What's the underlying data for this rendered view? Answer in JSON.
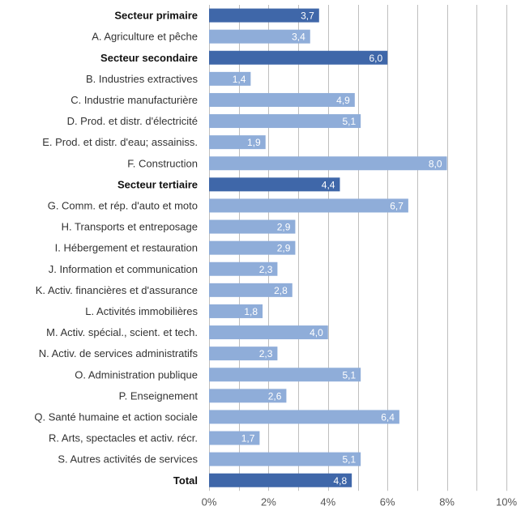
{
  "chart_data": {
    "type": "bar",
    "orientation": "horizontal",
    "title": "",
    "xlabel": "",
    "ylabel": "",
    "xlim": [
      0,
      10
    ],
    "x_ticks": [
      "0%",
      "2%",
      "4%",
      "6%",
      "8%",
      "10%"
    ],
    "grid": "vertical",
    "legend": "none",
    "colors": {
      "sector": "#3f67a9",
      "branch": "#8fadd9"
    },
    "categories": [
      {
        "label": "Secteur primaire",
        "value": 3.7,
        "value_label": "3,7",
        "kind": "sector"
      },
      {
        "label": "A. Agriculture et pêche",
        "value": 3.4,
        "value_label": "3,4",
        "kind": "branch"
      },
      {
        "label": "Secteur secondaire",
        "value": 6.0,
        "value_label": "6,0",
        "kind": "sector"
      },
      {
        "label": "B. Industries extractives",
        "value": 1.4,
        "value_label": "1,4",
        "kind": "branch"
      },
      {
        "label": "C. Industrie manufacturière",
        "value": 4.9,
        "value_label": "4,9",
        "kind": "branch"
      },
      {
        "label": "D. Prod. et distr. d'électricité",
        "value": 5.1,
        "value_label": "5,1",
        "kind": "branch"
      },
      {
        "label": "E. Prod. et distr. d'eau; assainiss.",
        "value": 1.9,
        "value_label": "1,9",
        "kind": "branch"
      },
      {
        "label": "F. Construction",
        "value": 8.0,
        "value_label": "8,0",
        "kind": "branch"
      },
      {
        "label": "Secteur tertiaire",
        "value": 4.4,
        "value_label": "4,4",
        "kind": "sector"
      },
      {
        "label": "G. Comm. et rép. d'auto et moto",
        "value": 6.7,
        "value_label": "6,7",
        "kind": "branch"
      },
      {
        "label": "H. Transports et entreposage",
        "value": 2.9,
        "value_label": "2,9",
        "kind": "branch"
      },
      {
        "label": "I. Hébergement et restauration",
        "value": 2.9,
        "value_label": "2,9",
        "kind": "branch"
      },
      {
        "label": "J. Information et communication",
        "value": 2.3,
        "value_label": "2,3",
        "kind": "branch"
      },
      {
        "label": "K. Activ. financières et d'assurance",
        "value": 2.8,
        "value_label": "2,8",
        "kind": "branch"
      },
      {
        "label": "L. Activités immobilières",
        "value": 1.8,
        "value_label": "1,8",
        "kind": "branch"
      },
      {
        "label": "M. Activ. spécial., scient. et tech.",
        "value": 4.0,
        "value_label": "4,0",
        "kind": "branch"
      },
      {
        "label": "N. Activ. de services administratifs",
        "value": 2.3,
        "value_label": "2,3",
        "kind": "branch"
      },
      {
        "label": "O. Administration publique",
        "value": 5.1,
        "value_label": "5,1",
        "kind": "branch"
      },
      {
        "label": "P. Enseignement",
        "value": 2.6,
        "value_label": "2,6",
        "kind": "branch"
      },
      {
        "label": "Q. Santé humaine et action sociale",
        "value": 6.4,
        "value_label": "6,4",
        "kind": "branch"
      },
      {
        "label": "R. Arts, spectacles et activ. récr.",
        "value": 1.7,
        "value_label": "1,7",
        "kind": "branch"
      },
      {
        "label": "S. Autres activités de services",
        "value": 5.1,
        "value_label": "5,1",
        "kind": "branch"
      },
      {
        "label": "Total",
        "value": 4.8,
        "value_label": "4,8",
        "kind": "sector"
      }
    ]
  }
}
